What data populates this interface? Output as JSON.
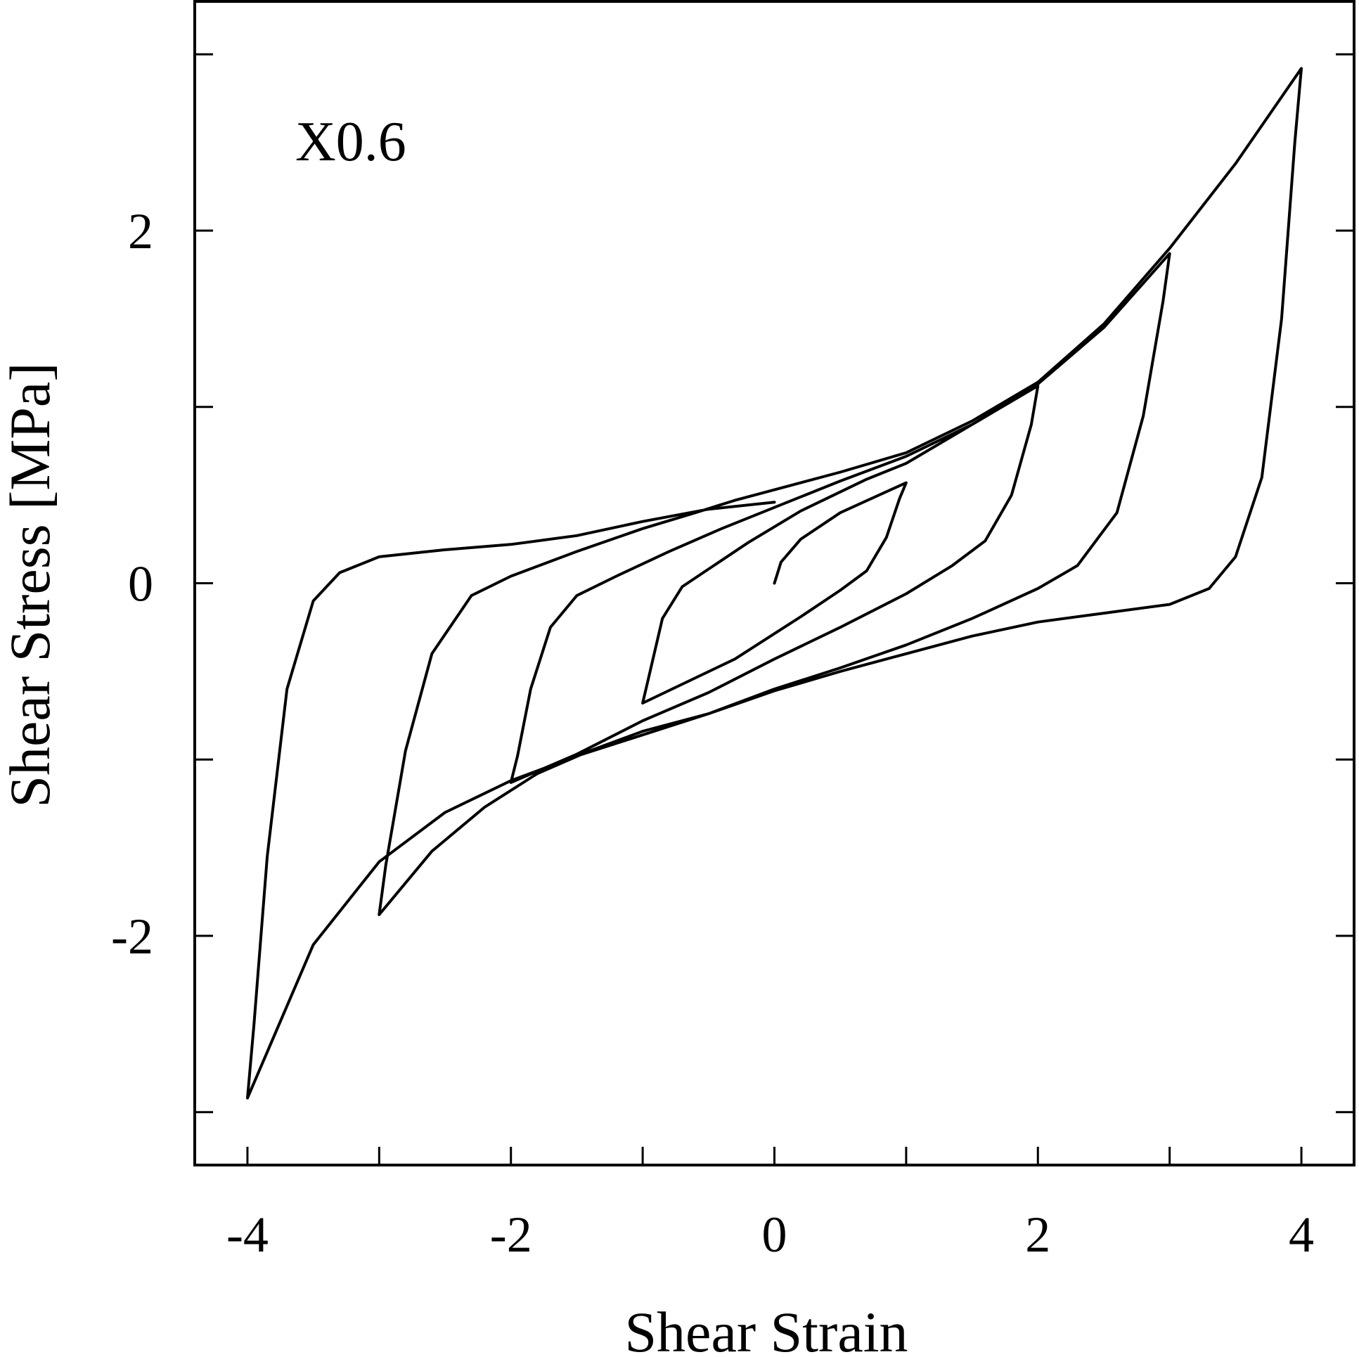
{
  "chart_data": {
    "type": "line",
    "title": "",
    "annotation": "X0.6",
    "xlabel": "Shear Strain",
    "ylabel": "Shear Stress [MPa]",
    "xlim": [
      -4.4,
      4.4
    ],
    "ylim": [
      -3.3,
      3.3
    ],
    "x_ticks": [
      -4,
      -3,
      -2,
      -1,
      0,
      1,
      2,
      3,
      4
    ],
    "x_tick_labels": [
      {
        "value": -4,
        "label": "-4"
      },
      {
        "value": -2,
        "label": "-2"
      },
      {
        "value": 0,
        "label": "0"
      },
      {
        "value": 2,
        "label": "2"
      },
      {
        "value": 4,
        "label": "4"
      }
    ],
    "y_ticks": [
      -3,
      -2,
      -1,
      0,
      1,
      2,
      3
    ],
    "y_tick_labels": [
      {
        "value": -2,
        "label": "-2"
      },
      {
        "value": 0,
        "label": "0"
      },
      {
        "value": 2,
        "label": "2"
      }
    ],
    "grid": false,
    "legend": "none",
    "series": [
      {
        "points": [
          [
            0,
            0
          ],
          [
            0.05,
            0.12
          ],
          [
            0.2,
            0.25
          ],
          [
            0.5,
            0.4
          ],
          [
            1.0,
            0.57
          ],
          [
            0.95,
            0.48
          ],
          [
            0.85,
            0.26
          ],
          [
            0.7,
            0.07
          ],
          [
            0.5,
            -0.04
          ],
          [
            0.2,
            -0.19
          ],
          [
            -0.3,
            -0.43
          ],
          [
            -1.0,
            -0.68
          ],
          [
            -0.95,
            -0.52
          ],
          [
            -0.85,
            -0.2
          ],
          [
            -0.7,
            -0.02
          ],
          [
            -0.5,
            0.08
          ],
          [
            -0.2,
            0.23
          ],
          [
            0.2,
            0.41
          ],
          [
            0.7,
            0.59
          ],
          [
            1.0,
            0.68
          ],
          [
            1.5,
            0.9
          ],
          [
            2.0,
            1.12
          ],
          [
            1.95,
            0.9
          ],
          [
            1.8,
            0.5
          ],
          [
            1.6,
            0.24
          ],
          [
            1.35,
            0.1
          ],
          [
            1.0,
            -0.06
          ],
          [
            0.5,
            -0.25
          ],
          [
            0,
            -0.43
          ],
          [
            -0.5,
            -0.62
          ],
          [
            -1.0,
            -0.78
          ],
          [
            -1.5,
            -0.97
          ],
          [
            -2.0,
            -1.13
          ],
          [
            -1.95,
            -0.98
          ],
          [
            -1.85,
            -0.6
          ],
          [
            -1.7,
            -0.25
          ],
          [
            -1.5,
            -0.07
          ],
          [
            -1.2,
            0.04
          ],
          [
            -0.8,
            0.18
          ],
          [
            -0.4,
            0.31
          ],
          [
            0,
            0.43
          ],
          [
            0.5,
            0.58
          ],
          [
            1.0,
            0.72
          ],
          [
            1.5,
            0.9
          ],
          [
            2.0,
            1.13
          ],
          [
            2.5,
            1.45
          ],
          [
            3.0,
            1.87
          ],
          [
            2.95,
            1.6
          ],
          [
            2.8,
            0.95
          ],
          [
            2.6,
            0.4
          ],
          [
            2.3,
            0.1
          ],
          [
            2.0,
            -0.03
          ],
          [
            1.5,
            -0.2
          ],
          [
            1.0,
            -0.35
          ],
          [
            0.5,
            -0.48
          ],
          [
            0,
            -0.6
          ],
          [
            -0.5,
            -0.74
          ],
          [
            -1.0,
            -0.84
          ],
          [
            -1.4,
            -0.95
          ],
          [
            -1.8,
            -1.08
          ],
          [
            -2.2,
            -1.27
          ],
          [
            -2.6,
            -1.52
          ],
          [
            -3.0,
            -1.88
          ],
          [
            -2.95,
            -1.6
          ],
          [
            -2.8,
            -0.95
          ],
          [
            -2.6,
            -0.4
          ],
          [
            -2.3,
            -0.07
          ],
          [
            -2.0,
            0.04
          ],
          [
            -1.5,
            0.18
          ],
          [
            -1.0,
            0.31
          ],
          [
            -0.6,
            0.4
          ],
          [
            -0.3,
            0.47
          ],
          [
            -0.1,
            0.51
          ],
          [
            0,
            0.53
          ],
          [
            0.5,
            0.63
          ],
          [
            1.0,
            0.74
          ],
          [
            1.5,
            0.92
          ],
          [
            2.0,
            1.14
          ],
          [
            2.5,
            1.47
          ],
          [
            3.0,
            1.9
          ],
          [
            3.5,
            2.38
          ],
          [
            4.0,
            2.92
          ],
          [
            3.95,
            2.5
          ],
          [
            3.85,
            1.5
          ],
          [
            3.7,
            0.6
          ],
          [
            3.5,
            0.15
          ],
          [
            3.3,
            -0.03
          ],
          [
            3.0,
            -0.12
          ],
          [
            2.5,
            -0.17
          ],
          [
            2.0,
            -0.22
          ],
          [
            1.5,
            -0.3
          ],
          [
            1.0,
            -0.4
          ],
          [
            0.5,
            -0.5
          ],
          [
            0,
            -0.61
          ],
          [
            -0.5,
            -0.74
          ],
          [
            -1.0,
            -0.86
          ],
          [
            -1.5,
            -0.98
          ],
          [
            -2.0,
            -1.12
          ],
          [
            -2.5,
            -1.3
          ],
          [
            -3.0,
            -1.58
          ],
          [
            -3.5,
            -2.05
          ],
          [
            -4.0,
            -2.92
          ],
          [
            -3.95,
            -2.5
          ],
          [
            -3.85,
            -1.55
          ],
          [
            -3.7,
            -0.6
          ],
          [
            -3.5,
            -0.1
          ],
          [
            -3.3,
            0.06
          ],
          [
            -3.0,
            0.15
          ],
          [
            -2.5,
            0.19
          ],
          [
            -2.0,
            0.22
          ],
          [
            -1.5,
            0.27
          ],
          [
            -1.0,
            0.35
          ],
          [
            -0.5,
            0.42
          ],
          [
            0,
            0.46
          ]
        ]
      }
    ]
  }
}
